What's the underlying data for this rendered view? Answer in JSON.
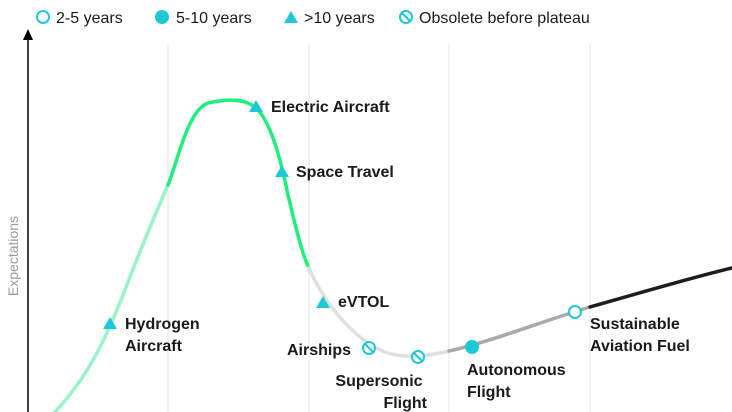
{
  "colors": {
    "marker": "#1ec9d6",
    "curve_trigger": "#99f2c8",
    "curve_peak": "#1ef07a",
    "curve_trough": "#e0e0e0",
    "curve_slope": "#a9a9a9",
    "curve_plateau": "#1c1c1c",
    "gridline": "#e6e6e6",
    "axis": "#000000"
  },
  "legend": [
    {
      "icon": "open-circle-icon",
      "label": "2-5 years"
    },
    {
      "icon": "filled-circle-icon",
      "label": "5-10 years"
    },
    {
      "icon": "triangle-icon",
      "label": ">10 years"
    },
    {
      "icon": "obsolete-circle-icon",
      "label": "Obsolete before plateau"
    }
  ],
  "axis": {
    "y_label": "Expectations"
  },
  "technologies": [
    {
      "id": "hydrogen-aircraft",
      "lines": [
        "Hydrogen",
        "Aircraft"
      ],
      "marker": "triangle-icon",
      "timeframe": ">10 years"
    },
    {
      "id": "electric-aircraft",
      "lines": [
        "Electric Aircraft"
      ],
      "marker": "triangle-icon",
      "timeframe": ">10 years"
    },
    {
      "id": "space-travel",
      "lines": [
        "Space Travel"
      ],
      "marker": "triangle-icon",
      "timeframe": ">10 years"
    },
    {
      "id": "evtol",
      "lines": [
        "eVTOL"
      ],
      "marker": "triangle-icon",
      "timeframe": ">10 years"
    },
    {
      "id": "airships",
      "lines": [
        "Airships"
      ],
      "marker": "obsolete-circle-icon",
      "timeframe": "Obsolete before plateau"
    },
    {
      "id": "supersonic-flight",
      "lines": [
        "Supersonic",
        "Flight"
      ],
      "marker": "obsolete-circle-icon",
      "timeframe": "Obsolete before plateau"
    },
    {
      "id": "autonomous-flight",
      "lines": [
        "Autonomous",
        "Flight"
      ],
      "marker": "filled-circle-icon",
      "timeframe": "5-10 years"
    },
    {
      "id": "sustainable-aviation-fuel",
      "lines": [
        "Sustainable",
        "Aviation Fuel"
      ],
      "marker": "open-circle-icon",
      "timeframe": "2-5 years"
    }
  ]
}
